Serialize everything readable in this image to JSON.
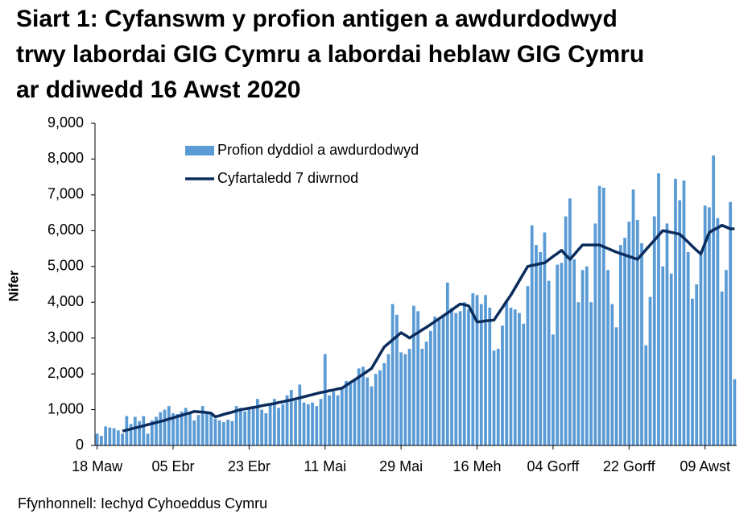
{
  "chart_data": {
    "type": "bar_line",
    "title": [
      "Siart 1: Cyfanswm y profion antigen a awdurdodwyd",
      "trwy labordai GIG Cymru a labordai heblaw GIG Cymru",
      "ar ddiwedd 16 Awst 2020"
    ],
    "y_label": "Nifer",
    "source": "Ffynhonnell: Iechyd Cyhoeddus Cymru",
    "categories": [
      "18 Maw",
      null,
      null,
      null,
      null,
      null,
      null,
      null,
      null,
      null,
      null,
      null,
      null,
      null,
      null,
      null,
      null,
      null,
      "05 Ebr",
      null,
      null,
      null,
      null,
      null,
      null,
      null,
      null,
      null,
      null,
      null,
      null,
      null,
      null,
      null,
      null,
      null,
      "23 Ebr",
      null,
      null,
      null,
      null,
      null,
      null,
      null,
      null,
      null,
      null,
      null,
      null,
      null,
      null,
      null,
      null,
      null,
      "11 Mai",
      null,
      null,
      null,
      null,
      null,
      null,
      null,
      null,
      null,
      null,
      null,
      null,
      null,
      null,
      null,
      null,
      null,
      "29 Mai",
      null,
      null,
      null,
      null,
      null,
      null,
      null,
      null,
      null,
      null,
      null,
      null,
      null,
      null,
      null,
      null,
      null,
      "16 Meh",
      null,
      null,
      null,
      null,
      null,
      null,
      null,
      null,
      null,
      null,
      null,
      null,
      null,
      null,
      null,
      null,
      null,
      "04 Gorff",
      null,
      null,
      null,
      null,
      null,
      null,
      null,
      null,
      null,
      null,
      null,
      null,
      null,
      null,
      null,
      null,
      null,
      "22 Gorff",
      null,
      null,
      null,
      null,
      null,
      null,
      null,
      null,
      null,
      null,
      null,
      null,
      null,
      null,
      null,
      null,
      null,
      "09 Awst",
      null,
      null,
      null,
      null,
      null,
      null,
      null
    ],
    "series": [
      {
        "name": "Profion dyddiol a awdurdodwyd",
        "kind": "bar",
        "color": "#5b9bd5",
        "values": [
          330,
          270,
          530,
          500,
          480,
          420,
          330,
          820,
          600,
          800,
          680,
          820,
          330,
          700,
          800,
          930,
          1000,
          1100,
          900,
          880,
          950,
          1050,
          900,
          700,
          850,
          1100,
          950,
          900,
          750,
          700,
          650,
          720,
          680,
          1100,
          1050,
          950,
          1000,
          1100,
          1300,
          1000,
          900,
          1150,
          1300,
          1050,
          1150,
          1400,
          1550,
          1250,
          1700,
          1200,
          1150,
          1200,
          1100,
          1300,
          2550,
          1400,
          1500,
          1400,
          1600,
          1800,
          1750,
          1850,
          2150,
          2200,
          1900,
          1650,
          2000,
          2100,
          2300,
          2550,
          3950,
          3650,
          2600,
          2550,
          2700,
          3900,
          3750,
          2700,
          2900,
          3200,
          3600,
          3500,
          3600,
          4550,
          3850,
          3700,
          3750,
          4000,
          3800,
          4250,
          4200,
          3950,
          4200,
          3850,
          2650,
          2700,
          3350,
          4050,
          3850,
          3800,
          3700,
          3400,
          4450,
          6150,
          5600,
          5400,
          5950,
          4600,
          3100,
          5050,
          5100,
          6400,
          6900,
          5200,
          4000,
          4900,
          5000,
          4000,
          6200,
          7250,
          7200,
          4900,
          3950,
          3300,
          5600,
          5800,
          6250,
          7150,
          6300,
          5650,
          2800,
          4150,
          6400,
          7600,
          5000,
          6200,
          4800,
          7450,
          6850,
          7400,
          5400,
          4100,
          4500,
          5350,
          6700,
          6650,
          8100,
          6350,
          4300,
          4900,
          6800,
          1850
        ]
      },
      {
        "name": "Cyfartaledd 7 diwrnod",
        "kind": "line",
        "color": "#0b2d5e",
        "values": [
          null,
          null,
          null,
          null,
          null,
          null,
          400,
          430,
          460,
          490,
          520,
          550,
          580,
          610,
          640,
          670,
          700,
          740,
          770,
          810,
          840,
          880,
          910,
          950,
          940,
          930,
          920,
          900,
          800,
          830,
          870,
          900,
          930,
          970,
          1000,
          1020,
          1040,
          1060,
          1080,
          1110,
          1130,
          1150,
          1170,
          1200,
          1220,
          1250,
          1270,
          1300,
          1330,
          1360,
          1390,
          1420,
          1450,
          1480,
          1500,
          1530,
          1550,
          1580,
          1600,
          1680,
          1760,
          1830,
          1910,
          1990,
          2070,
          2150,
          2350,
          2550,
          2750,
          2850,
          2950,
          3050,
          3150,
          3080,
          3000,
          3080,
          3150,
          3230,
          3300,
          3380,
          3460,
          3540,
          3620,
          3700,
          3780,
          3870,
          3950,
          3930,
          3900,
          3680,
          3450,
          3460,
          3480,
          3490,
          3500,
          3680,
          3850,
          4030,
          4200,
          4400,
          4600,
          4800,
          5000,
          5030,
          5050,
          5080,
          5100,
          5190,
          5280,
          5360,
          5450,
          5320,
          5200,
          5330,
          5470,
          5600,
          5600,
          5600,
          5600,
          5600,
          5550,
          5500,
          5450,
          5400,
          5360,
          5320,
          5280,
          5240,
          5200,
          5330,
          5470,
          5600,
          5730,
          5870,
          6000,
          5980,
          5950,
          5930,
          5900,
          5790,
          5680,
          5560,
          5450,
          5350,
          5650,
          5950,
          6020,
          6080,
          6150,
          6100,
          6050,
          6050
        ]
      }
    ],
    "ylim": [
      0,
      9000
    ],
    "yticks": [
      0,
      {
        "value": 1000,
        "label": "1,000"
      },
      {
        "value": 2000,
        "label": "2,000"
      },
      {
        "value": 3000,
        "label": "3,000"
      },
      {
        "value": 4000,
        "label": "4,000"
      },
      {
        "value": 5000,
        "label": "5,000"
      },
      {
        "value": 6000,
        "label": "6,000"
      },
      {
        "value": 7000,
        "label": "7,000"
      },
      {
        "value": 8000,
        "label": "8,000"
      },
      {
        "value": 9000,
        "label": "9,000"
      }
    ],
    "grid": false,
    "legend": "top-left"
  }
}
